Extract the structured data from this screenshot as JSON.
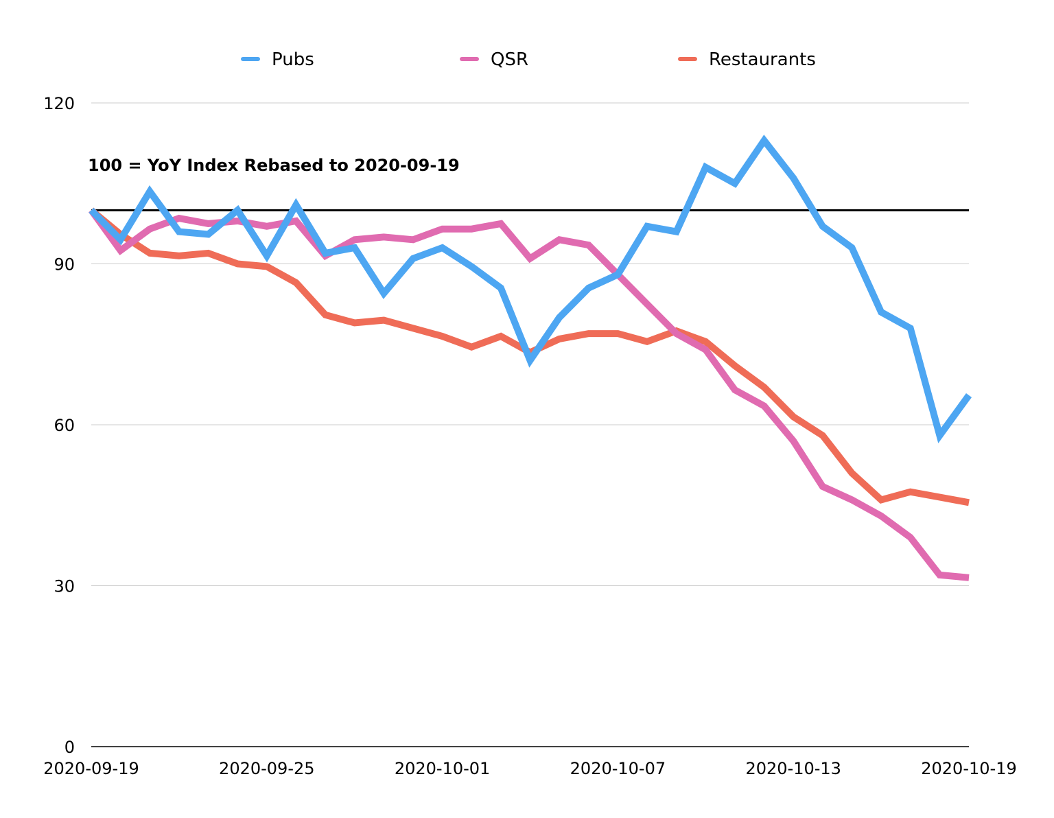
{
  "chart_data": {
    "type": "line",
    "title": "",
    "xlabel": "",
    "ylabel": "",
    "ylim": [
      0,
      120
    ],
    "yticks": [
      0,
      30,
      60,
      90,
      120
    ],
    "grid": "horizontal",
    "legend_position": "top",
    "x_tick_labels": [
      "2020-09-19",
      "2020-09-25",
      "2020-10-01",
      "2020-10-07",
      "2020-10-13",
      "2020-10-19"
    ],
    "x_tick_indices": [
      0,
      6,
      12,
      18,
      24,
      30
    ],
    "x": [
      "2020-09-19",
      "2020-09-20",
      "2020-09-21",
      "2020-09-22",
      "2020-09-23",
      "2020-09-24",
      "2020-09-25",
      "2020-09-26",
      "2020-09-27",
      "2020-09-28",
      "2020-09-29",
      "2020-09-30",
      "2020-10-01",
      "2020-10-02",
      "2020-10-03",
      "2020-10-04",
      "2020-10-05",
      "2020-10-06",
      "2020-10-07",
      "2020-10-08",
      "2020-10-09",
      "2020-10-10",
      "2020-10-11",
      "2020-10-12",
      "2020-10-13",
      "2020-10-14",
      "2020-10-15",
      "2020-10-16",
      "2020-10-17",
      "2020-10-18",
      "2020-10-19"
    ],
    "series": [
      {
        "name": "Pubs",
        "color": "#4da6f2",
        "values": [
          100,
          94.5,
          103.5,
          96,
          95.5,
          100,
          91.5,
          101,
          92,
          93,
          84.5,
          91,
          93,
          89.5,
          85.5,
          72,
          80,
          85.5,
          88,
          97,
          96,
          108,
          105,
          113,
          106,
          97,
          93,
          81,
          78,
          58,
          65.5
        ]
      },
      {
        "name": "QSR",
        "color": "#e06bb0",
        "values": [
          100,
          92.5,
          96.5,
          98.5,
          97.5,
          98,
          97,
          98,
          91.5,
          94.5,
          95,
          94.5,
          96.5,
          96.5,
          97.5,
          91,
          94.5,
          93.5,
          88,
          82.5,
          77,
          74,
          66.5,
          63.5,
          57,
          48.5,
          46,
          43,
          39,
          32,
          31.5
        ]
      },
      {
        "name": "Restaurants",
        "color": "#ef6c57",
        "values": [
          100,
          95.5,
          92,
          91.5,
          92,
          90,
          89.5,
          86.5,
          80.5,
          79,
          79.5,
          78,
          76.5,
          74.5,
          76.5,
          73.5,
          76,
          77,
          77,
          75.5,
          77.5,
          75.5,
          71,
          67,
          61.5,
          58,
          51,
          46,
          47.5,
          46.5,
          45.5
        ]
      }
    ],
    "reference_line": {
      "value": 100,
      "color": "#000000"
    },
    "annotation": "100 = YoY Index Rebased to 2020-09-19"
  }
}
